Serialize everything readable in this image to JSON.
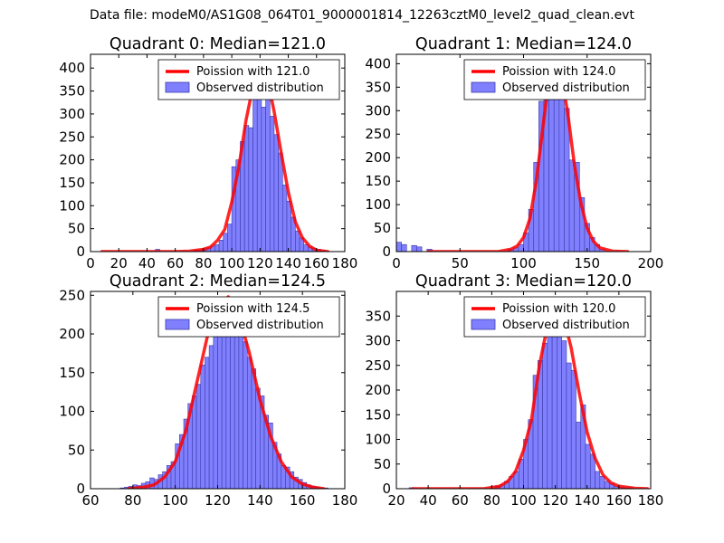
{
  "figure": {
    "suptitle": "Data file: modeM0/AS1G08_064T01_9000001814_12263cztM0_level2_quad_clean.evt"
  },
  "colors": {
    "bar_fill": "#8080ff",
    "bar_edge": "#3a3aa8",
    "poisson_line": "#ff0000",
    "axis": "#000000",
    "background": "#ffffff"
  },
  "chart_data": [
    {
      "type": "bar",
      "title": "Quadrant 0: Median=121.0",
      "xlim": [
        0,
        180
      ],
      "ylim": [
        0,
        430
      ],
      "xticks": [
        0,
        20,
        40,
        60,
        80,
        100,
        120,
        140,
        160,
        180
      ],
      "yticks": [
        0,
        50,
        100,
        150,
        200,
        250,
        300,
        350,
        400
      ],
      "legend": {
        "position": "top-right",
        "line_label": "Poission with 121.0",
        "bar_label": "Observed distribution"
      },
      "bin_width": 3,
      "bins_x": [
        46,
        73,
        76,
        79,
        82,
        85,
        88,
        91,
        94,
        97,
        100,
        103,
        106,
        109,
        112,
        115,
        118,
        121,
        124,
        127,
        130,
        133,
        136,
        139,
        142,
        145,
        148,
        151,
        154,
        157,
        160,
        163
      ],
      "bins_y": [
        5,
        3,
        3,
        5,
        8,
        12,
        15,
        25,
        40,
        60,
        185,
        200,
        240,
        275,
        270,
        335,
        415,
        315,
        385,
        295,
        255,
        215,
        145,
        110,
        75,
        45,
        30,
        15,
        10,
        7,
        5,
        2
      ],
      "poisson_x": [
        8,
        60,
        70,
        80,
        85,
        90,
        95,
        100,
        105,
        110,
        115,
        120,
        125,
        130,
        135,
        140,
        145,
        150,
        155,
        160,
        168
      ],
      "poisson_y": [
        0,
        0,
        1,
        5,
        10,
        25,
        48,
        108,
        185,
        285,
        360,
        410,
        380,
        305,
        215,
        130,
        65,
        30,
        12,
        3,
        0
      ]
    },
    {
      "type": "bar",
      "title": "Quadrant 1: Median=124.0",
      "xlim": [
        0,
        200
      ],
      "ylim": [
        0,
        420
      ],
      "xticks": [
        0,
        50,
        100,
        150,
        200
      ],
      "yticks": [
        0,
        50,
        100,
        150,
        200,
        250,
        300,
        350,
        400
      ],
      "legend": {
        "position": "top-right",
        "line_label": "Poission with 124.0",
        "bar_label": "Observed distribution"
      },
      "bin_width": 4,
      "bins_x": [
        0,
        4,
        12,
        16,
        24,
        88,
        92,
        96,
        100,
        104,
        108,
        112,
        116,
        120,
        124,
        128,
        132,
        136,
        140,
        144,
        148,
        152,
        156,
        160
      ],
      "bins_y": [
        20,
        15,
        13,
        10,
        5,
        5,
        8,
        15,
        40,
        90,
        190,
        320,
        350,
        385,
        400,
        345,
        305,
        195,
        190,
        115,
        60,
        30,
        15,
        5
      ],
      "poisson_x": [
        25,
        80,
        90,
        95,
        100,
        105,
        110,
        115,
        120,
        125,
        130,
        135,
        140,
        145,
        150,
        155,
        160,
        170,
        182
      ],
      "poisson_y": [
        0,
        0,
        5,
        12,
        30,
        70,
        150,
        260,
        370,
        405,
        375,
        290,
        185,
        105,
        50,
        22,
        8,
        1,
        0
      ]
    },
    {
      "type": "bar",
      "title": "Quadrant 2: Median=124.5",
      "xlim": [
        60,
        180
      ],
      "ylim": [
        0,
        255
      ],
      "xticks": [
        60,
        80,
        100,
        120,
        140,
        160,
        180
      ],
      "yticks": [
        0,
        50,
        100,
        150,
        200,
        250
      ],
      "legend": {
        "position": "top-right",
        "line_label": "Poission with 124.5",
        "bar_label": "Observed distribution"
      },
      "bin_width": 2,
      "bins_x": [
        74,
        76,
        78,
        80,
        82,
        84,
        86,
        88,
        90,
        92,
        94,
        96,
        98,
        100,
        102,
        104,
        106,
        108,
        110,
        112,
        114,
        116,
        118,
        120,
        122,
        124,
        126,
        128,
        130,
        132,
        134,
        136,
        138,
        140,
        142,
        144,
        146,
        148,
        150,
        152,
        154,
        156,
        158,
        160,
        162,
        164,
        166,
        168,
        170
      ],
      "bins_y": [
        1,
        2,
        3,
        5,
        4,
        7,
        9,
        14,
        12,
        18,
        22,
        30,
        35,
        58,
        70,
        90,
        110,
        120,
        135,
        160,
        170,
        185,
        200,
        205,
        210,
        200,
        245,
        240,
        220,
        190,
        170,
        155,
        130,
        120,
        95,
        85,
        60,
        45,
        30,
        28,
        22,
        15,
        12,
        8,
        5,
        3,
        2,
        1,
        1
      ],
      "poisson_x": [
        78,
        85,
        90,
        95,
        100,
        105,
        110,
        115,
        120,
        125,
        130,
        135,
        140,
        145,
        150,
        155,
        160,
        165,
        170
      ],
      "poisson_y": [
        0,
        2,
        5,
        15,
        35,
        75,
        135,
        195,
        235,
        248,
        225,
        175,
        115,
        68,
        35,
        15,
        6,
        2,
        0
      ]
    },
    {
      "type": "bar",
      "title": "Quadrant 3: Median=120.0",
      "xlim": [
        20,
        180
      ],
      "ylim": [
        0,
        400
      ],
      "xticks": [
        20,
        40,
        60,
        80,
        100,
        120,
        140,
        160,
        180
      ],
      "yticks": [
        0,
        50,
        100,
        150,
        200,
        250,
        300,
        350
      ],
      "legend": {
        "position": "top-right",
        "line_label": "Poission with 120.0",
        "bar_label": "Observed distribution"
      },
      "bin_width": 3,
      "bins_x": [
        28,
        82,
        85,
        88,
        91,
        94,
        97,
        100,
        103,
        106,
        109,
        112,
        115,
        118,
        121,
        124,
        127,
        130,
        133,
        136,
        139,
        142,
        145,
        148,
        151,
        154,
        157,
        160,
        163,
        166
      ],
      "bins_y": [
        2,
        5,
        8,
        15,
        25,
        35,
        60,
        100,
        140,
        230,
        260,
        295,
        350,
        330,
        310,
        300,
        255,
        240,
        135,
        170,
        90,
        70,
        35,
        25,
        15,
        10,
        5,
        3,
        2,
        2
      ],
      "poisson_x": [
        30,
        75,
        85,
        90,
        95,
        100,
        105,
        110,
        115,
        120,
        125,
        130,
        135,
        140,
        145,
        150,
        155,
        160,
        170,
        178
      ],
      "poisson_y": [
        0,
        0,
        5,
        15,
        35,
        78,
        140,
        250,
        330,
        375,
        350,
        285,
        195,
        115,
        62,
        28,
        12,
        5,
        1,
        0
      ]
    }
  ]
}
